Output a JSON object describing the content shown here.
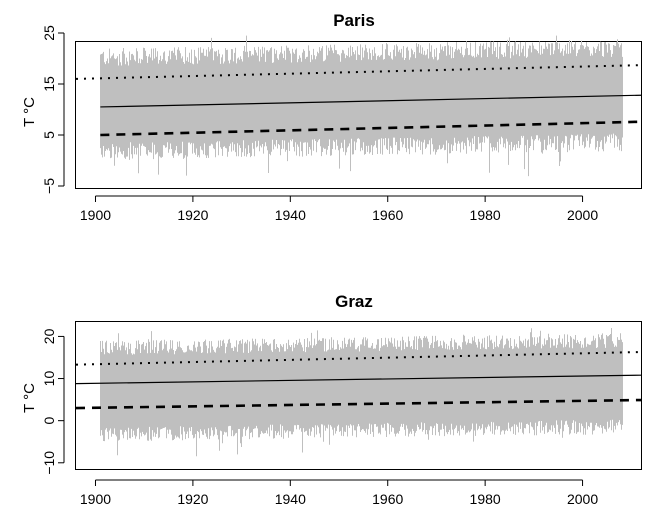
{
  "chart_data": [
    {
      "type": "line",
      "title": "Paris",
      "ylabel": "T °C",
      "xlabel": "",
      "xlim": [
        1896,
        2012
      ],
      "ylim": [
        -5,
        25
      ],
      "xticks": [
        1900,
        1920,
        1940,
        1960,
        1980,
        2000
      ],
      "xtick_labels": [
        "1900",
        "1920",
        "1940",
        "1960",
        "1980",
        "2000"
      ],
      "yticks": [
        -5,
        5,
        15,
        25
      ],
      "ytick_labels": [
        "−5",
        "5",
        "15",
        "25"
      ],
      "grid": false,
      "series": [
        {
          "style": "daily temperature",
          "color": "#bfbfbf",
          "x_range": [
            1901,
            2008
          ],
          "upper_typical": 21,
          "lower_typical": 1,
          "upper_extreme": 24.5,
          "lower_extreme": -4
        },
        {
          "style": "solid",
          "color": "#000000",
          "x": [
            1901,
            2012
          ],
          "y": [
            10.5,
            12.8
          ]
        },
        {
          "style": "dotted",
          "color": "#000000",
          "x": [
            1896,
            2012
          ],
          "y": [
            16.0,
            18.7
          ]
        },
        {
          "style": "dashed",
          "color": "#000000",
          "x": [
            1901,
            2012
          ],
          "y": [
            5.0,
            7.6
          ]
        }
      ]
    },
    {
      "type": "line",
      "title": "Graz",
      "ylabel": "T °C",
      "xlabel": "",
      "xlim": [
        1896,
        2012
      ],
      "ylim": [
        -11,
        22
      ],
      "xticks": [
        1900,
        1920,
        1940,
        1960,
        1980,
        2000
      ],
      "xtick_labels": [
        "1900",
        "1920",
        "1940",
        "1960",
        "1980",
        "2000"
      ],
      "yticks": [
        -10,
        0,
        10,
        20
      ],
      "ytick_labels": [
        "−10",
        "0",
        "10",
        "20"
      ],
      "grid": false,
      "series": [
        {
          "style": "daily temperature",
          "color": "#bfbfbf",
          "x_range": [
            1901,
            2008
          ],
          "upper_typical": 18,
          "lower_typical": -4,
          "upper_extreme": 22,
          "lower_extreme": -10
        },
        {
          "style": "solid",
          "color": "#000000",
          "x": [
            1896,
            2012
          ],
          "y": [
            8.8,
            10.8
          ]
        },
        {
          "style": "dotted",
          "color": "#000000",
          "x": [
            1896,
            2012
          ],
          "y": [
            13.3,
            16.3
          ]
        },
        {
          "style": "dashed",
          "color": "#000000",
          "x": [
            1896,
            2012
          ],
          "y": [
            3.0,
            4.9
          ]
        }
      ]
    }
  ]
}
